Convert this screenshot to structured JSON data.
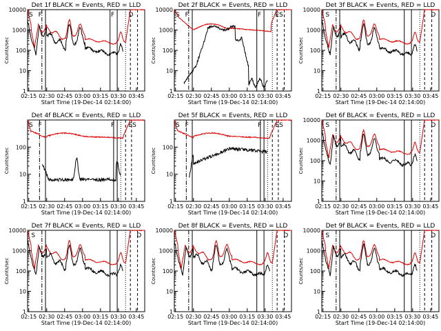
{
  "page": {
    "xlabel": "Start Time (19-Dec-14 02:14:00)",
    "ylabel": "Counts/sec"
  },
  "chart_data": [
    {
      "type": "line",
      "title": "Det 1f BLACK = Events, RED = LLD",
      "xlabel": "Start Time (19-Dec-14 02:14:00)",
      "ylabel": "Counts/sec",
      "y_scale": "log",
      "ylim": [
        1,
        10000
      ],
      "xticks": [
        "02:15",
        "02:30",
        "02:45",
        "03:00",
        "03:15",
        "03:30",
        "03:45"
      ],
      "yticks": [
        "1",
        "10",
        "100",
        "1000",
        "10000"
      ],
      "markers": [
        {
          "label": "S"
        },
        {
          "label": "F"
        },
        {
          "label": "F"
        },
        {
          "label": "D"
        }
      ],
      "series": [
        {
          "name": "Events",
          "color": "#000000"
        },
        {
          "name": "LLD",
          "color": "#dd0000"
        }
      ],
      "profile": "full"
    },
    {
      "type": "line",
      "title": "Det 2f BLACK = Events, RED = LLD",
      "xlabel": "Start Time (19-Dec-14 02:14:00)",
      "ylabel": "Counts/sec",
      "y_scale": "log",
      "ylim": [
        1,
        10000
      ],
      "xticks": [
        "02:15",
        "02:30",
        "02:45",
        "03:00",
        "03:15",
        "03:30",
        "03:45"
      ],
      "yticks": [
        "1",
        "10",
        "100",
        "1000",
        "10000"
      ],
      "markers": [
        {
          "label": "S"
        },
        {
          "label": "F"
        },
        {
          "label": "F"
        },
        {
          "label": "ES"
        }
      ],
      "series": [
        {
          "name": "Events",
          "color": "#000000"
        },
        {
          "name": "LLD",
          "color": "#dd0000"
        }
      ],
      "profile": "det2"
    },
    {
      "type": "line",
      "title": "Det 3f BLACK = Events, RED = LLD",
      "xlabel": "Start Time (19-Dec-14 02:14:00)",
      "ylabel": "Counts/sec",
      "y_scale": "log",
      "ylim": [
        1,
        10000
      ],
      "xticks": [
        "02:15",
        "02:30",
        "02:45",
        "03:00",
        "03:15",
        "03:30",
        "03:45"
      ],
      "yticks": [
        "1",
        "10",
        "100",
        "1000",
        "10000"
      ],
      "markers": [
        {
          "label": "S"
        },
        {
          "label": "D"
        }
      ],
      "series": [
        {
          "name": "Events",
          "color": "#000000"
        },
        {
          "name": "LLD",
          "color": "#dd0000"
        }
      ],
      "profile": "full"
    },
    {
      "type": "line",
      "title": "Det 4f BLACK = Events, RED = LLD",
      "xlabel": "Start Time (19-Dec-14 02:14:00)",
      "ylabel": "Counts/sec",
      "y_scale": "log",
      "ylim": [
        1,
        1000
      ],
      "xticks": [
        "02:15",
        "02:30",
        "02:45",
        "03:00",
        "03:15",
        "03:30",
        "03:45"
      ],
      "yticks": [
        "1",
        "10",
        "100"
      ],
      "markers": [
        {
          "label": "S"
        },
        {
          "label": "F"
        },
        {
          "label": "F"
        },
        {
          "label": "ES"
        }
      ],
      "series": [
        {
          "name": "Events",
          "color": "#000000"
        },
        {
          "name": "LLD",
          "color": "#dd0000"
        }
      ],
      "profile": "det4"
    },
    {
      "type": "line",
      "title": "Det 5f BLACK = Events, RED = LLD",
      "xlabel": "Start Time (19-Dec-14 02:14:00)",
      "ylabel": "Counts/sec",
      "y_scale": "log",
      "ylim": [
        1,
        1000
      ],
      "xticks": [
        "02:15",
        "02:30",
        "02:45",
        "03:00",
        "03:15",
        "03:30",
        "03:45"
      ],
      "yticks": [
        "1",
        "10",
        "100"
      ],
      "markers": [
        {
          "label": "S"
        },
        {
          "label": "F"
        },
        {
          "label": "F"
        },
        {
          "label": "ES"
        }
      ],
      "series": [
        {
          "name": "Events",
          "color": "#000000"
        },
        {
          "name": "LLD",
          "color": "#dd0000"
        }
      ],
      "profile": "det5"
    },
    {
      "type": "line",
      "title": "Det 6f BLACK = Events, RED = LLD",
      "xlabel": "Start Time (19-Dec-14 02:14:00)",
      "ylabel": "Counts/sec",
      "y_scale": "log",
      "ylim": [
        1,
        10000
      ],
      "xticks": [
        "02:15",
        "02:30",
        "02:45",
        "03:00",
        "03:15",
        "03:30",
        "03:45"
      ],
      "yticks": [
        "1",
        "10",
        "100",
        "1000",
        "10000"
      ],
      "markers": [
        {
          "label": "S"
        },
        {
          "label": "D"
        }
      ],
      "series": [
        {
          "name": "Events",
          "color": "#000000"
        },
        {
          "name": "LLD",
          "color": "#dd0000"
        }
      ],
      "profile": "full"
    },
    {
      "type": "line",
      "title": "Det 7f BLACK = Events, RED = LLD",
      "xlabel": "Start Time (19-Dec-14 02:14:00)",
      "ylabel": "Counts/sec",
      "y_scale": "log",
      "ylim": [
        1,
        10000
      ],
      "xticks": [
        "02:15",
        "02:30",
        "02:45",
        "03:00",
        "03:15",
        "03:30",
        "03:45"
      ],
      "yticks": [
        "1",
        "10",
        "100",
        "1000",
        "10000"
      ],
      "markers": [
        {
          "label": "S"
        },
        {
          "label": "D"
        }
      ],
      "series": [
        {
          "name": "Events",
          "color": "#000000"
        },
        {
          "name": "LLD",
          "color": "#dd0000"
        }
      ],
      "profile": "full"
    },
    {
      "type": "line",
      "title": "Det 8f BLACK = Events, RED = LLD",
      "xlabel": "Start Time (19-Dec-14 02:14:00)",
      "ylabel": "Counts/sec",
      "y_scale": "log",
      "ylim": [
        1,
        10000
      ],
      "xticks": [
        "02:15",
        "02:30",
        "02:45",
        "03:00",
        "03:15",
        "03:30",
        "03:45"
      ],
      "yticks": [
        "1",
        "10",
        "100",
        "1000",
        "10000"
      ],
      "markers": [
        {
          "label": "D"
        }
      ],
      "series": [
        {
          "name": "Events",
          "color": "#000000"
        },
        {
          "name": "LLD",
          "color": "#dd0000"
        }
      ],
      "profile": "full"
    },
    {
      "type": "line",
      "title": "Det 9f BLACK = Events, RED = LLD",
      "xlabel": "Start Time (19-Dec-14 02:14:00)",
      "ylabel": "Counts/sec",
      "y_scale": "log",
      "ylim": [
        1,
        10000
      ],
      "xticks": [
        "02:15",
        "02:30",
        "02:45",
        "03:00",
        "03:15",
        "03:30",
        "03:45"
      ],
      "yticks": [
        "1",
        "10",
        "100",
        "1000",
        "10000"
      ],
      "markers": [
        {
          "label": "S"
        },
        {
          "label": "D"
        }
      ],
      "series": [
        {
          "name": "Events",
          "color": "#000000"
        },
        {
          "name": "LLD",
          "color": "#dd0000"
        }
      ],
      "profile": "full"
    }
  ]
}
